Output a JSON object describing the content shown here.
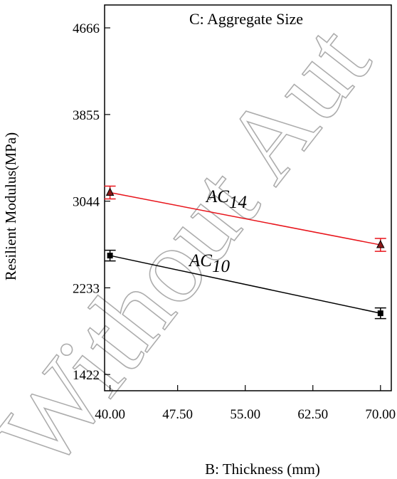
{
  "watermark": {
    "text": "Without Aut"
  },
  "chart_data": {
    "type": "line",
    "title": "C: Aggregate Size",
    "xlabel": "B: Thickness (mm)",
    "ylabel": "Resilient Modulus(MPa)",
    "x_ticks": [
      "40.00",
      "47.50",
      "55.00",
      "62.50",
      "70.00"
    ],
    "y_ticks": [
      "1422",
      "2233",
      "3044",
      "3855",
      "4666"
    ],
    "xlim": [
      39.4,
      71.2
    ],
    "ylim": [
      1270,
      4880
    ],
    "grid": false,
    "x": [
      40,
      70
    ],
    "series": [
      {
        "name": "AC14",
        "name_main": "AC",
        "name_sub": "14",
        "values": [
          3125,
          2635
        ],
        "error": [
          60,
          60
        ],
        "color": "#e8141b",
        "marker": "triangle"
      },
      {
        "name": "AC10",
        "name_main": "AC",
        "name_sub": "10",
        "values": [
          2535,
          1995
        ],
        "error": [
          50,
          50
        ],
        "color": "#000000",
        "marker": "square"
      }
    ]
  }
}
